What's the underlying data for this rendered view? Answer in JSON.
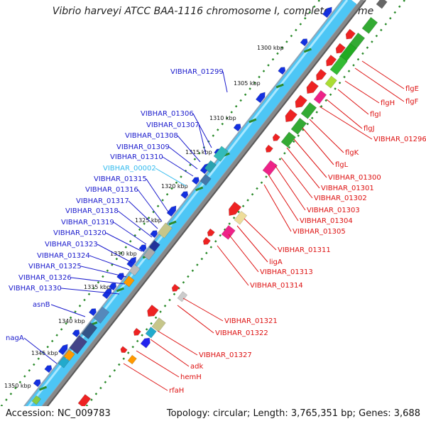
{
  "header": {
    "title": "Vibrio harveyi ATCC BAA-1116 chromosome I, complete genome"
  },
  "footer": {
    "accession": "Accession: NC_009783",
    "topology": "Topology: circular; Length: 3,765,351 bp; Genes: 3,688"
  },
  "colors": {
    "forward_label": "#1a1acc",
    "reverse_label": "#dd1111",
    "highlight_label": "#33bbee",
    "backbone_light": "#55ccff",
    "backbone_dark": "#777777",
    "tick_dot": "#2a8a2a"
  },
  "scale_labels": [
    "1300 kbp",
    "1305 kbp",
    "1310 kbp",
    "1315 kbp",
    "1320 kbp",
    "1325 kbp",
    "1330 kbp",
    "1335 kbp",
    "1340 kbp",
    "1345 kbp",
    "1350 kbp"
  ],
  "forward_genes": [
    "VIBHAR_01299",
    "VIBHAR_01306",
    "VIBHAR_01307",
    "VIBHAR_01308",
    "VIBHAR_01309",
    "VIBHAR_01310",
    "VIBHAR_00002",
    "VIBHAR_01315",
    "VIBHAR_01316",
    "VIBHAR_01317",
    "VIBHAR_01318",
    "VIBHAR_01319",
    "VIBHAR_01320",
    "VIBHAR_01323",
    "VIBHAR_01324",
    "VIBHAR_01325",
    "VIBHAR_01326",
    "VIBHAR_01330",
    "asnB",
    "nagA"
  ],
  "reverse_genes": [
    "flgE",
    "flgF",
    "flgH",
    "flgI",
    "flgJ",
    "VIBHAR_01296",
    "flgK",
    "flgL",
    "VIBHAR_01300",
    "VIBHAR_01301",
    "VIBHAR_01302",
    "VIBHAR_01303",
    "VIBHAR_01304",
    "VIBHAR_01305",
    "VIBHAR_01311",
    "ligA",
    "VIBHAR_01313",
    "VIBHAR_01314",
    "VIBHAR_01321",
    "VIBHAR_01322",
    "VIBHAR_01327",
    "adk",
    "hemH",
    "rfaH"
  ]
}
